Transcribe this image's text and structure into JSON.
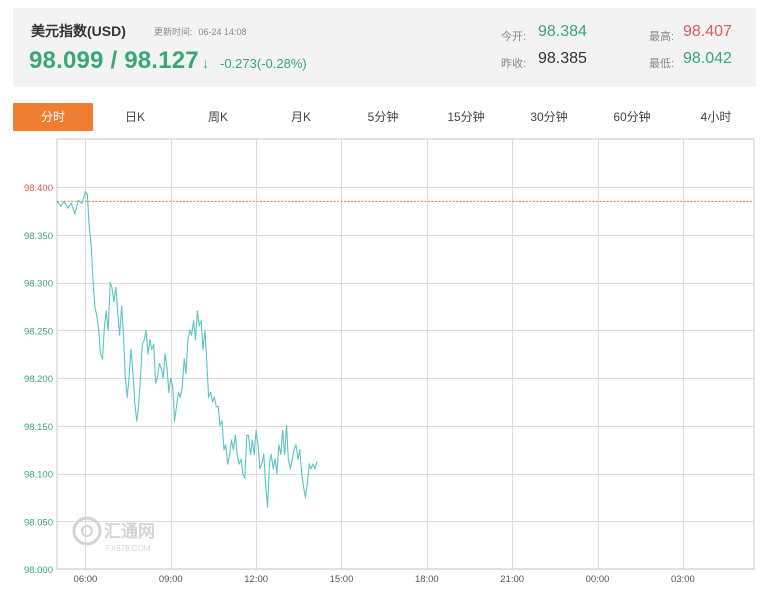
{
  "header": {
    "title": "美元指数(USD)",
    "update_label": "更新时间:",
    "update_time": "06-24 14:08",
    "price": "98.099 / 98.127",
    "arrow": "↓",
    "change": "-0.273(-0.28%)",
    "open_label": "今开:",
    "open_value": "98.384",
    "high_label": "最高:",
    "high_value": "98.407",
    "prev_close_label": "昨收:",
    "prev_close_value": "98.385",
    "low_label": "最低:",
    "low_value": "98.042"
  },
  "tabs": [
    "分时",
    "日K",
    "周K",
    "月K",
    "5分钟",
    "15分钟",
    "30分钟",
    "60分钟",
    "4小时"
  ],
  "active_tab": 0,
  "colors": {
    "line": "#5bc4c6",
    "ref_line": "#f07a3a",
    "up": "#e05a5a",
    "down": "#3aa876",
    "accent": "#ef7d32"
  },
  "watermark": {
    "brand": "汇通网",
    "domain": "FX678.COM"
  },
  "chart_data": {
    "type": "line",
    "x_tick_labels": [
      "06:00",
      "09:00",
      "12:00",
      "15:00",
      "18:00",
      "21:00",
      "00:00",
      "03:00"
    ],
    "y_tick_labels": [
      "98.400",
      "98.350",
      "98.300",
      "98.250",
      "98.200",
      "98.150",
      "98.100",
      "98.050",
      "98.000"
    ],
    "ylim": [
      98.0,
      98.4
    ],
    "time_range_hours": [
      5.0,
      29.5
    ],
    "reference_value": 98.385,
    "grid": true,
    "series": [
      {
        "x": [
          5.0,
          5.13,
          5.25,
          5.38,
          5.5,
          5.63,
          5.75,
          5.88,
          6.0,
          6.07,
          6.13,
          6.2,
          6.27,
          6.33,
          6.4,
          6.47,
          6.53,
          6.6,
          6.67,
          6.73,
          6.8,
          6.87,
          6.93,
          7.0,
          7.07,
          7.13,
          7.2,
          7.27,
          7.33,
          7.4,
          7.47,
          7.53,
          7.6,
          7.67,
          7.73,
          7.8,
          7.87,
          7.93,
          8.0,
          8.07,
          8.13,
          8.2,
          8.27,
          8.33,
          8.4,
          8.47,
          8.53,
          8.6,
          8.67,
          8.73,
          8.8,
          8.87,
          8.93,
          9.0,
          9.07,
          9.13,
          9.2,
          9.27,
          9.33,
          9.4,
          9.47,
          9.53,
          9.6,
          9.67,
          9.73,
          9.8,
          9.87,
          9.93,
          10.0,
          10.07,
          10.13,
          10.2,
          10.27,
          10.33,
          10.4,
          10.47,
          10.53,
          10.6,
          10.67,
          10.73,
          10.8,
          10.87,
          10.93,
          11.0,
          11.07,
          11.13,
          11.2,
          11.27,
          11.33,
          11.4,
          11.47,
          11.53,
          11.6,
          11.67,
          11.73,
          11.8,
          11.87,
          11.93,
          12.0,
          12.07,
          12.13,
          12.2,
          12.27,
          12.33,
          12.4,
          12.47,
          12.53,
          12.6,
          12.67,
          12.73,
          12.8,
          12.87,
          12.93,
          13.0,
          13.07,
          13.13,
          13.2,
          13.27,
          13.33,
          13.4,
          13.47,
          13.53,
          13.6,
          13.67,
          13.73,
          13.8,
          13.87,
          13.93,
          14.0,
          14.07,
          14.13
        ],
        "y": [
          98.385,
          98.38,
          98.385,
          98.378,
          98.383,
          98.372,
          98.386,
          98.383,
          98.395,
          98.392,
          98.36,
          98.34,
          98.3,
          98.275,
          98.265,
          98.25,
          98.225,
          98.22,
          98.255,
          98.27,
          98.25,
          98.3,
          98.295,
          98.28,
          98.295,
          98.27,
          98.245,
          98.275,
          98.25,
          98.2,
          98.18,
          98.2,
          98.23,
          98.205,
          98.175,
          98.155,
          98.17,
          98.2,
          98.235,
          98.24,
          98.25,
          98.225,
          98.24,
          98.23,
          98.235,
          98.195,
          98.2,
          98.215,
          98.21,
          98.2,
          98.225,
          98.21,
          98.185,
          98.2,
          98.19,
          98.155,
          98.17,
          98.185,
          98.18,
          98.19,
          98.22,
          98.205,
          98.24,
          98.25,
          98.245,
          98.26,
          98.24,
          98.27,
          98.255,
          98.26,
          98.23,
          98.25,
          98.215,
          98.18,
          98.185,
          98.175,
          98.18,
          98.17,
          98.17,
          98.15,
          98.155,
          98.125,
          98.13,
          98.11,
          98.12,
          98.135,
          98.125,
          98.14,
          98.12,
          98.11,
          98.115,
          98.1,
          98.095,
          98.14,
          98.14,
          98.12,
          98.135,
          98.12,
          98.145,
          98.13,
          98.105,
          98.11,
          98.12,
          98.09,
          98.065,
          98.11,
          98.12,
          98.105,
          98.115,
          98.1,
          98.13,
          98.12,
          98.145,
          98.12,
          98.15,
          98.115,
          98.105,
          98.115,
          98.125,
          98.13,
          98.115,
          98.125,
          98.1,
          98.085,
          98.075,
          98.09,
          98.11,
          98.105,
          98.11,
          98.105,
          98.112
        ]
      }
    ]
  }
}
